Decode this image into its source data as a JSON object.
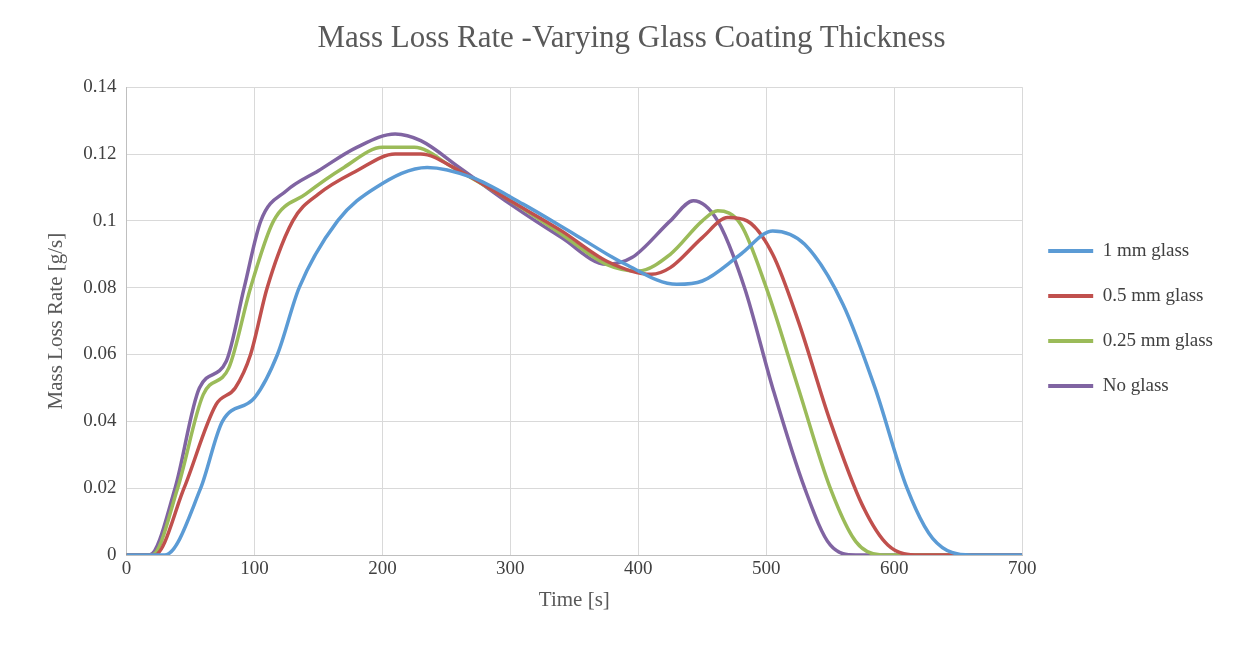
{
  "chart_data": {
    "type": "line",
    "title": "Mass Loss Rate -Varying Glass Coating Thickness",
    "xlabel": "Time [s]",
    "ylabel": "Mass Loss Rate [g/s]",
    "xlim": [
      0,
      700
    ],
    "xticks": [
      0,
      100,
      200,
      300,
      400,
      500,
      600,
      700
    ],
    "ylim": [
      0,
      0.14
    ],
    "yticks": [
      0,
      0.02,
      0.04,
      0.06,
      0.08,
      0.1,
      0.12,
      0.14
    ],
    "grid": true,
    "legend": "right",
    "marker": "none",
    "series": [
      {
        "name": "1 mm glass",
        "color": "#5b9bd5",
        "x": [
          0,
          30,
          58,
          75,
          100,
          118,
          135,
          165,
          195,
          235,
          270,
          310,
          350,
          390,
          430,
          450,
          480,
          505,
          530,
          560,
          585,
          610,
          630,
          660,
          700
        ],
        "values": [
          0,
          0,
          0.02,
          0.04,
          0.047,
          0.06,
          0.08,
          0.1,
          0.11,
          0.116,
          0.113,
          0.105,
          0.096,
          0.087,
          0.081,
          0.082,
          0.09,
          0.097,
          0.093,
          0.075,
          0.05,
          0.02,
          0.005,
          0,
          0
        ]
      },
      {
        "name": "0.5 mm glass",
        "color": "#c0504d",
        "x": [
          0,
          22,
          45,
          70,
          85,
          97,
          110,
          130,
          150,
          180,
          210,
          230,
          260,
          300,
          340,
          375,
          410,
          425,
          450,
          470,
          485,
          505,
          525,
          550,
          575,
          595,
          620,
          700
        ],
        "values": [
          0,
          0,
          0.02,
          0.045,
          0.05,
          0.06,
          0.08,
          0.1,
          0.108,
          0.115,
          0.12,
          0.12,
          0.115,
          0.106,
          0.097,
          0.088,
          0.084,
          0.086,
          0.095,
          0.101,
          0.1,
          0.09,
          0.07,
          0.04,
          0.015,
          0.003,
          0,
          0
        ]
      },
      {
        "name": "0.25 mm glass",
        "color": "#9bbb59",
        "x": [
          0,
          20,
          40,
          60,
          80,
          97,
          115,
          140,
          170,
          200,
          225,
          255,
          300,
          340,
          375,
          400,
          425,
          450,
          462,
          480,
          500,
          525,
          550,
          570,
          590,
          700
        ],
        "values": [
          0,
          0,
          0.02,
          0.048,
          0.056,
          0.08,
          0.1,
          0.108,
          0.116,
          0.122,
          0.122,
          0.116,
          0.106,
          0.096,
          0.087,
          0.085,
          0.09,
          0.1,
          0.103,
          0.099,
          0.08,
          0.05,
          0.02,
          0.004,
          0,
          0
        ]
      },
      {
        "name": "No glass",
        "color": "#8064a2",
        "x": [
          0,
          18,
          38,
          57,
          78,
          92,
          105,
          125,
          150,
          180,
          210,
          230,
          260,
          300,
          340,
          375,
          395,
          425,
          443,
          462,
          483,
          505,
          530,
          550,
          570,
          700
        ],
        "values": [
          0,
          0,
          0.02,
          0.05,
          0.058,
          0.08,
          0.1,
          0.109,
          0.115,
          0.122,
          0.126,
          0.124,
          0.116,
          0.105,
          0.095,
          0.087,
          0.089,
          0.1,
          0.106,
          0.1,
          0.08,
          0.05,
          0.02,
          0.003,
          0,
          0
        ]
      }
    ]
  }
}
